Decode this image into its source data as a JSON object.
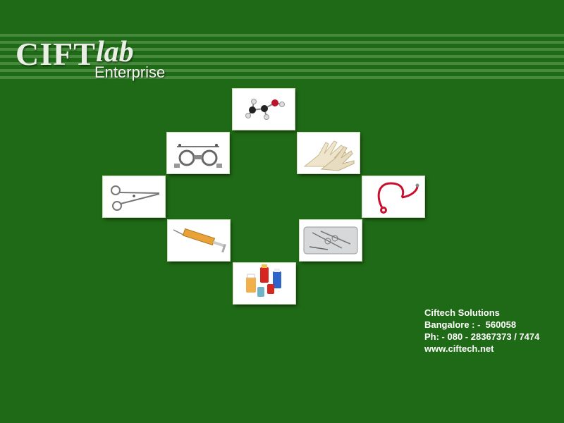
{
  "brand": {
    "name_part1": "CIFT",
    "name_part2": "lab",
    "tagline": "Enterprise"
  },
  "tiles": [
    {
      "name": "molecule-image"
    },
    {
      "name": "trial-frame-image"
    },
    {
      "name": "gloves-image"
    },
    {
      "name": "forceps-image"
    },
    {
      "name": "stethoscope-image"
    },
    {
      "name": "syringe-image"
    },
    {
      "name": "instrument-tray-image"
    },
    {
      "name": "medicine-bottles-image"
    }
  ],
  "contact": {
    "company": "Ciftech Solutions",
    "address": "Bangalore : -  560058",
    "phone": "Ph: - 080 - 28367373 / 7474",
    "website": "www.ciftech.net"
  },
  "colors": {
    "background": "#1f6a16",
    "stripe": "#4f8f45",
    "text": "#ffffff"
  }
}
